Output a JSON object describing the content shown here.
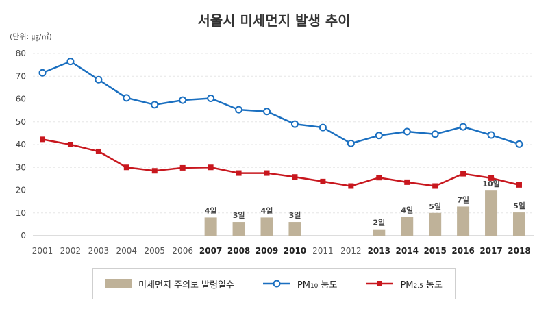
{
  "chart_data": {
    "type": "bar+line",
    "title": "서울시 미세먼지 발생 추이",
    "unit_label": "(단위: ㎍/㎥)",
    "categories": [
      "2001",
      "2002",
      "2003",
      "2004",
      "2005",
      "2006",
      "2007",
      "2008",
      "2009",
      "2010",
      "2011",
      "2012",
      "2013",
      "2014",
      "2015",
      "2016",
      "2017",
      "2018"
    ],
    "bold_categories": [
      "2007",
      "2008",
      "2009",
      "2010",
      "2013",
      "2014",
      "2015",
      "2016",
      "2017",
      "2018"
    ],
    "ylim": [
      0,
      80
    ],
    "yticks": [
      0,
      10,
      20,
      30,
      40,
      50,
      60,
      70,
      80
    ],
    "grid": true,
    "legend_position": "bottom",
    "bars": {
      "name": "미세먼지 주의보 발령일수",
      "color": "#bfb299",
      "values": [
        null,
        null,
        null,
        null,
        null,
        null,
        8,
        6,
        8,
        6,
        null,
        null,
        2.8,
        8.2,
        10,
        12.8,
        19.8,
        10.2
      ],
      "labels": [
        "",
        "",
        "",
        "",
        "",
        "",
        "4일",
        "3일",
        "4일",
        "3일",
        "",
        "",
        "2일",
        "4일",
        "5일",
        "7일",
        "10일",
        "5일"
      ]
    },
    "series": [
      {
        "name": "PM10 농도",
        "name_main": "PM",
        "name_sub": "10",
        "name_tail": " 농도",
        "color": "#1a6fc0",
        "marker": "circle",
        "values": [
          71.5,
          76.5,
          68.5,
          60.5,
          57.5,
          59.5,
          60.3,
          55.3,
          54.5,
          49,
          47.5,
          40.5,
          44,
          45.7,
          44.6,
          47.8,
          44.2,
          40.2
        ]
      },
      {
        "name": "PM2.5 농도",
        "name_main": "PM",
        "name_sub": "2.5",
        "name_tail": " 농도",
        "color": "#c8171e",
        "marker": "square",
        "values": [
          42.3,
          40,
          37,
          30,
          28.5,
          29.8,
          30,
          27.5,
          27.5,
          25.8,
          23.8,
          21.8,
          25.5,
          23.5,
          21.8,
          27.2,
          25.3,
          22.3
        ]
      }
    ]
  }
}
